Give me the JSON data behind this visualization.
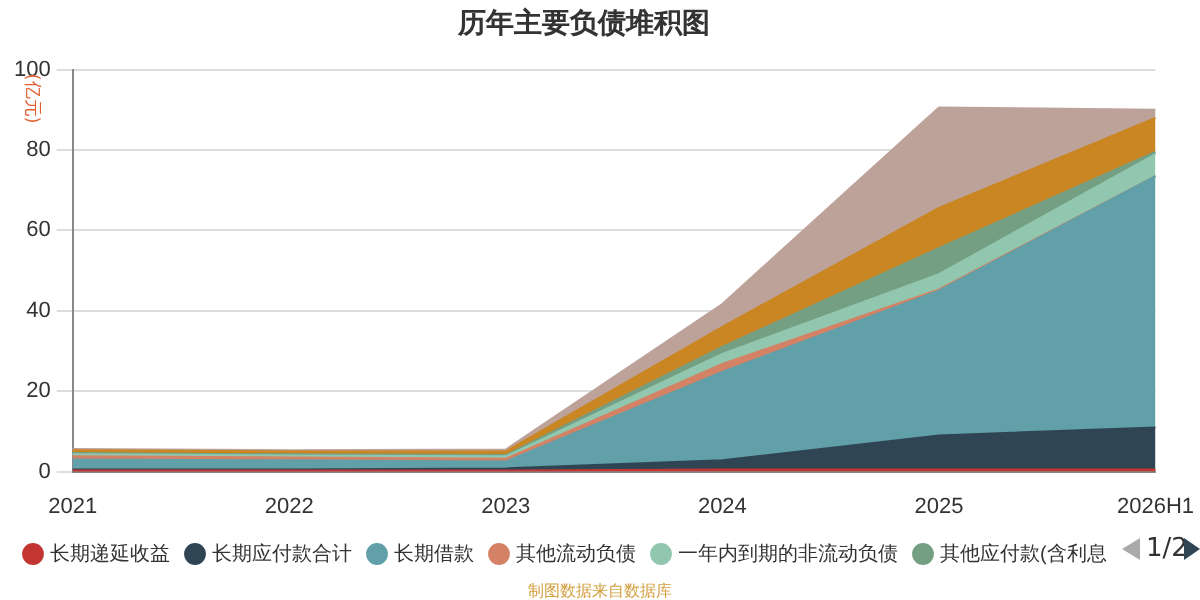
{
  "chart_data": {
    "type": "area",
    "stacked": true,
    "title": "历年主要负债堆积图",
    "ylabel": "(亿元)",
    "categories": [
      "2021",
      "2022",
      "2023",
      "2024",
      "2025",
      "2026H1"
    ],
    "series": [
      {
        "name": "长期递延收益",
        "color": "#c23531",
        "values": [
          0.3,
          0.3,
          0.3,
          0.5,
          0.5,
          0.5
        ]
      },
      {
        "name": "长期应付款合计",
        "color": "#2f4554",
        "values": [
          0.2,
          0.2,
          0.5,
          2.3,
          8.5,
          10.5
        ]
      },
      {
        "name": "长期借款",
        "color": "#61a0a8",
        "values": [
          2.5,
          2.3,
          1.7,
          22,
          36,
          62.5
        ]
      },
      {
        "name": "其他流动负债",
        "color": "#d48265",
        "values": [
          0.8,
          0.7,
          0.7,
          2,
          0.3,
          0
        ]
      },
      {
        "name": "一年内到期的非流动负债",
        "color": "#91c7ae",
        "values": [
          0.5,
          0.5,
          0.6,
          2.5,
          3.8,
          5.5
        ]
      },
      {
        "name": "其他应付款(含利息",
        "color": "#749f83",
        "values": [
          0.3,
          0.3,
          0.3,
          1.7,
          6.5,
          0.5
        ]
      },
      {
        "color": "#ca8622",
        "values": [
          0.7,
          0.7,
          0.9,
          5,
          10,
          8.5
        ]
      },
      {
        "color": "#bda29a",
        "values": [
          0.3,
          0.3,
          0.5,
          5.7,
          25,
          2
        ]
      }
    ],
    "ylim": [
      0,
      100
    ],
    "yticks": [
      0,
      20,
      40,
      60,
      80,
      100
    ],
    "grid": "y",
    "legend": "bottom",
    "annotations": [
      "1/2",
      "制图数据来自数据库"
    ]
  }
}
